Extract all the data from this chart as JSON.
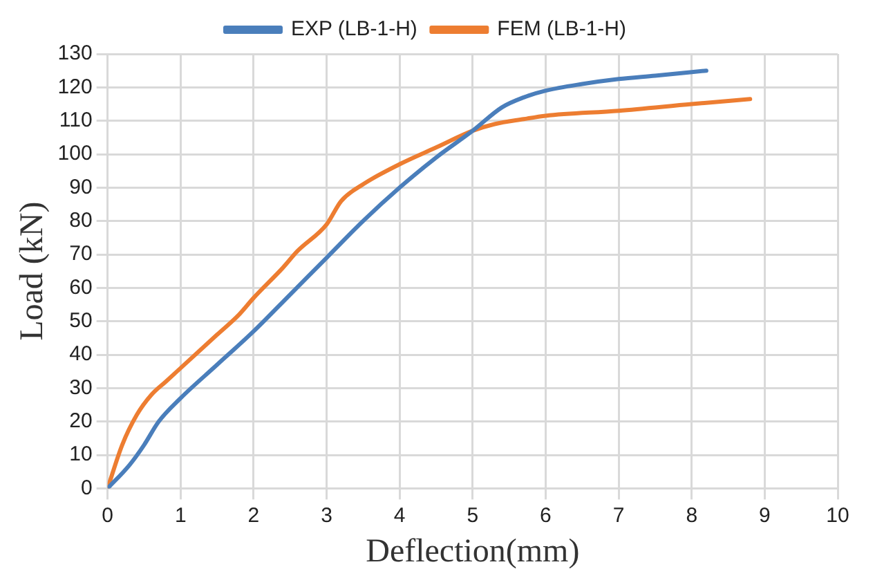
{
  "chart_data": {
    "type": "line",
    "xlabel": "Deflection(mm)",
    "ylabel": "Load (kN)",
    "xlim": [
      0,
      10
    ],
    "xticks": [
      0,
      1,
      2,
      3,
      4,
      5,
      6,
      7,
      8,
      9,
      10
    ],
    "ylim": [
      0,
      130
    ],
    "yticks": [
      0,
      10,
      20,
      30,
      40,
      50,
      60,
      70,
      80,
      90,
      100,
      110,
      120,
      130
    ],
    "grid": true,
    "legend": "top",
    "marker": "none",
    "line_style": "solid",
    "series": [
      {
        "name": "EXP (LB-1-H)",
        "color": "#4a7ebb",
        "x": [
          0,
          0.3,
          0.5,
          0.7,
          1,
          1.5,
          2,
          2.5,
          3,
          3.5,
          4,
          4.5,
          5,
          5.4,
          5.7,
          6,
          6.5,
          7,
          7.5,
          8.2
        ],
        "values": [
          0,
          7,
          13,
          20,
          27,
          37,
          47,
          58,
          69,
          80,
          90,
          99,
          107,
          114,
          117,
          119,
          121,
          122.5,
          123.5,
          125
        ]
      },
      {
        "name": "FEM (LB-1-H)",
        "color": "#ed7d31",
        "x": [
          0,
          0.2,
          0.4,
          0.6,
          0.8,
          1,
          1.5,
          1.8,
          2,
          2.4,
          2.6,
          3,
          3.2,
          3.5,
          4,
          4.5,
          5,
          5.3,
          5.7,
          6,
          7,
          8,
          8.8
        ],
        "values": [
          0,
          13,
          22,
          28,
          32,
          36,
          46,
          52,
          57,
          66,
          71,
          79,
          86,
          91,
          97,
          102,
          107,
          109,
          110.5,
          111.5,
          113,
          115,
          116.5
        ]
      }
    ]
  }
}
